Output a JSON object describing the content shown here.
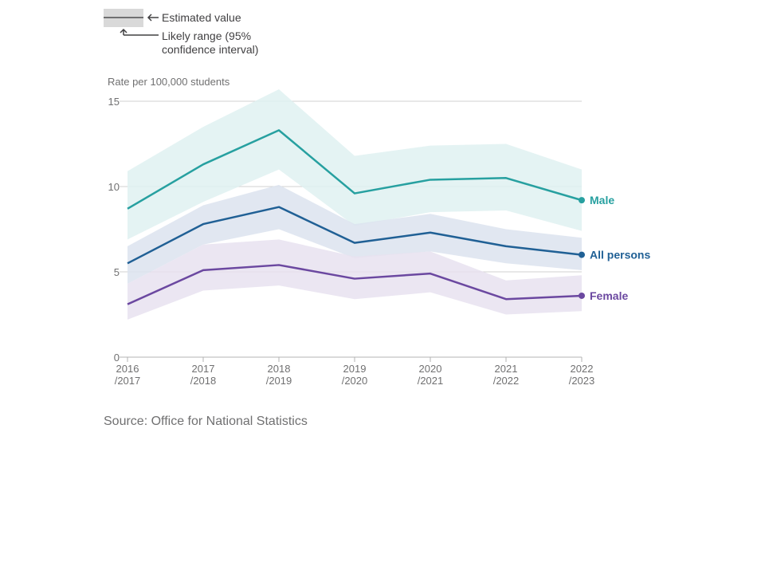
{
  "legend": {
    "estimate_label": "Estimated value",
    "range_label_line1": "Likely range (95%",
    "range_label_line2": "confidence interval)"
  },
  "source": "Source: Office for National Statistics",
  "chart_data": {
    "type": "line",
    "ylabel": "Rate per 100,000 students",
    "ylim": [
      0,
      15
    ],
    "yticks": [
      0,
      5,
      10,
      15
    ],
    "grid": true,
    "categories": [
      [
        "2016",
        "/2017"
      ],
      [
        "2017",
        "/2018"
      ],
      [
        "2018",
        "/2019"
      ],
      [
        "2019",
        "/2020"
      ],
      [
        "2020",
        "/2021"
      ],
      [
        "2021",
        "/2022"
      ],
      [
        "2022",
        "/2023"
      ]
    ],
    "series": [
      {
        "name": "Male",
        "color": "#27a0a0",
        "band_color": "#dff1f1",
        "values": [
          8.7,
          11.3,
          13.3,
          9.6,
          10.4,
          10.5,
          9.2
        ],
        "lower": [
          6.9,
          9.1,
          11.0,
          7.7,
          8.5,
          8.6,
          7.4
        ],
        "upper": [
          10.9,
          13.5,
          15.7,
          11.8,
          12.4,
          12.5,
          11.0
        ]
      },
      {
        "name": "All persons",
        "color": "#206095",
        "band_color": "#dce3ee",
        "values": [
          5.5,
          7.8,
          8.8,
          6.7,
          7.3,
          6.5,
          6.0
        ],
        "lower": [
          4.3,
          6.6,
          7.5,
          5.8,
          6.2,
          5.5,
          5.1
        ],
        "upper": [
          6.5,
          8.9,
          10.1,
          7.8,
          8.4,
          7.5,
          7.0
        ]
      },
      {
        "name": "Female",
        "color": "#6b48a0",
        "band_color": "#e7e2f0",
        "values": [
          3.1,
          5.1,
          5.4,
          4.6,
          4.9,
          3.4,
          3.6
        ],
        "lower": [
          2.2,
          3.9,
          4.2,
          3.4,
          3.8,
          2.5,
          2.7
        ],
        "upper": [
          4.3,
          6.6,
          6.9,
          5.9,
          6.2,
          4.5,
          4.8
        ]
      }
    ]
  }
}
